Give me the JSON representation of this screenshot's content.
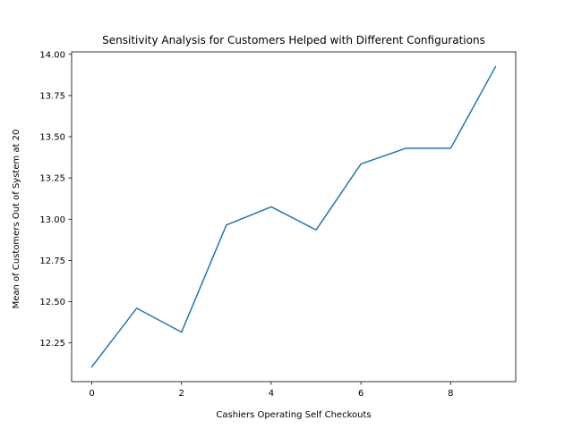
{
  "chart_data": {
    "type": "line",
    "title": "Sensitivity Analysis for Customers Helped with Different Configurations",
    "xlabel": "Cashiers Operating Self Checkouts",
    "ylabel": "Mean of Customers Out of System at 20",
    "x": [
      0,
      1,
      2,
      3,
      4,
      5,
      6,
      7,
      8,
      9
    ],
    "series": [
      {
        "values": [
          12.105,
          12.46,
          12.315,
          12.965,
          13.075,
          12.935,
          13.335,
          13.43,
          13.43,
          13.925
        ],
        "color": "#1f77b4"
      }
    ],
    "xlim": [
      -0.45,
      9.45
    ],
    "ylim": [
      12.015,
      14.015
    ],
    "xticks": [
      0,
      2,
      4,
      6,
      8
    ],
    "xtick_labels": [
      "0",
      "2",
      "4",
      "6",
      "8"
    ],
    "yticks": [
      12.25,
      12.5,
      12.75,
      13.0,
      13.25,
      13.5,
      13.75,
      14.0
    ],
    "ytick_labels": [
      "12.25",
      "12.50",
      "12.75",
      "13.00",
      "13.25",
      "13.50",
      "13.75",
      "14.00"
    ],
    "grid": false,
    "legend": "none"
  }
}
